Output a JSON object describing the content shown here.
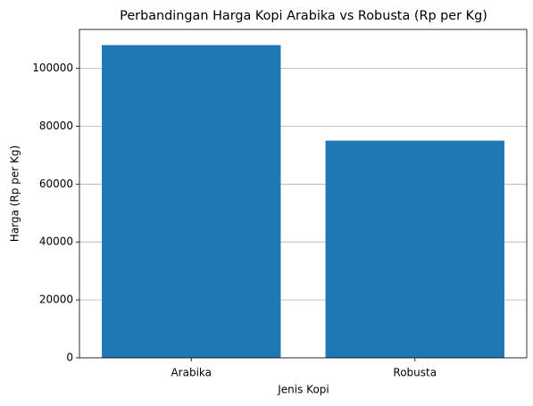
{
  "chart_data": {
    "type": "bar",
    "title": "Perbandingan Harga Kopi Arabika vs Robusta (Rp per Kg)",
    "x_label": "Jenis Kopi",
    "y_label": "Harga (Rp per Kg)",
    "categories": [
      "Arabika",
      "Robusta"
    ],
    "values": [
      108000,
      75000
    ],
    "color": "#1f77b4",
    "ylim": [
      0,
      113400
    ],
    "yticks": [
      0,
      20000,
      40000,
      60000,
      80000,
      100000
    ],
    "grid": true
  }
}
